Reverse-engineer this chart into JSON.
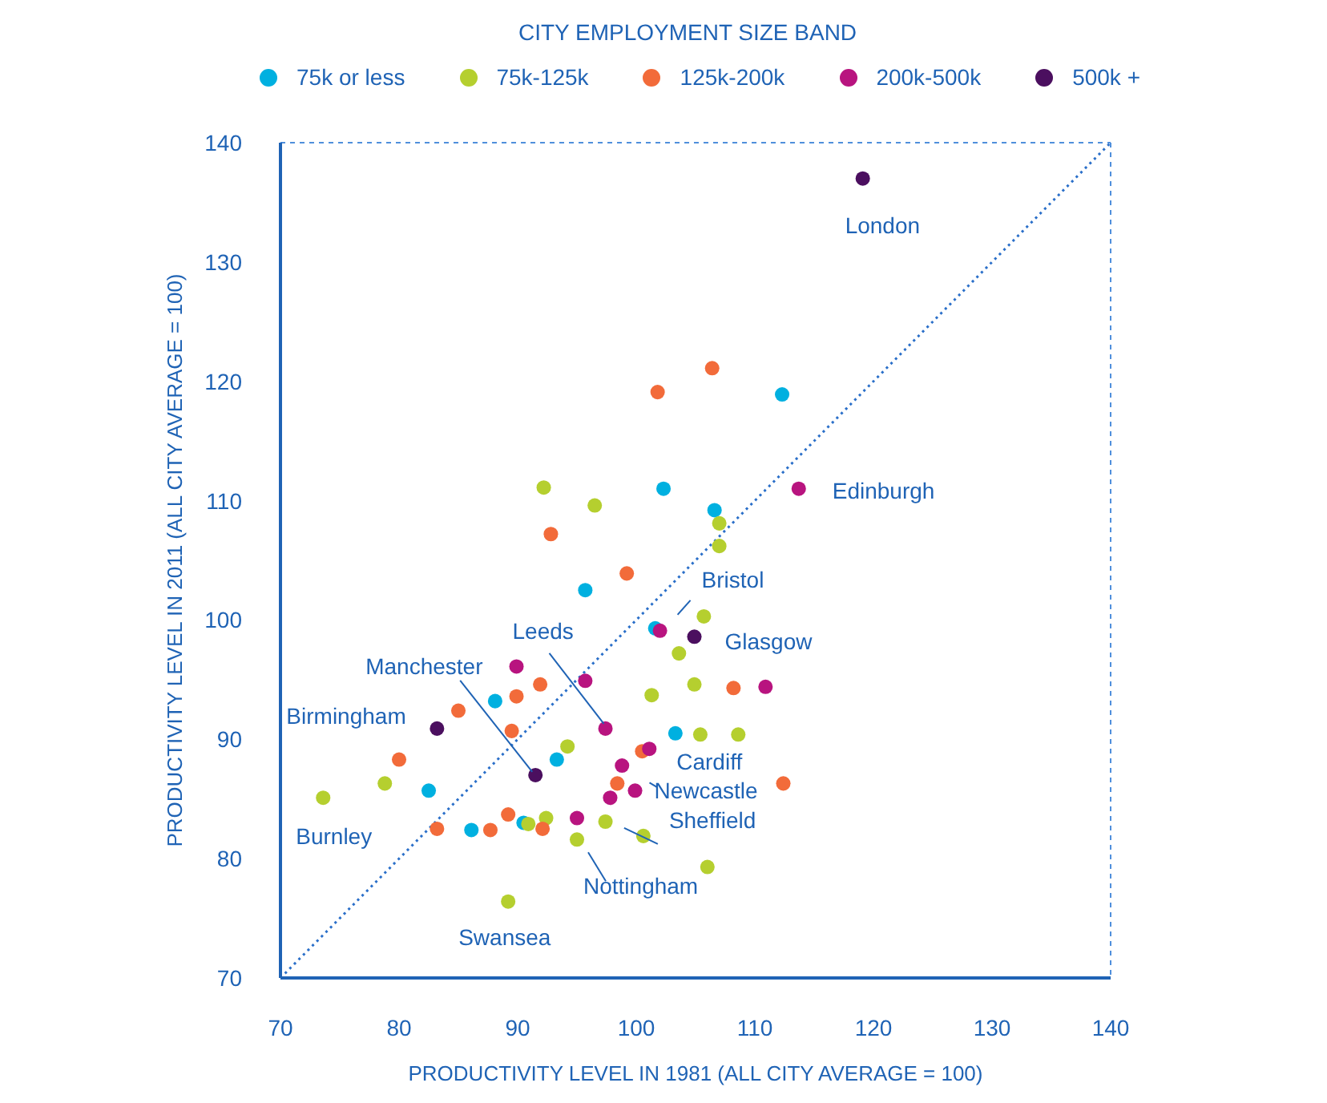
{
  "chart_data": {
    "type": "scatter",
    "xlabel": "PRODUCTIVITY LEVEL IN 1981 (ALL CITY AVERAGE = 100)",
    "ylabel": "PRODUCTIVITY LEVEL IN 2011 (ALL CITY AVERAGE = 100)",
    "legend_title": "CITY EMPLOYMENT SIZE BAND",
    "legend": "top",
    "grid": false,
    "marker": "circle",
    "xlim": [
      70,
      140
    ],
    "xticks": [
      70,
      80,
      90,
      100,
      110,
      120,
      130,
      140
    ],
    "ylim": [
      70,
      140
    ],
    "yticks": [
      70,
      80,
      90,
      100,
      110,
      120,
      130,
      140
    ],
    "series": [
      {
        "name": "75k or less",
        "color": "#00b0e0",
        "x": [
          112.3,
          102.3,
          106.6,
          95.7,
          101.6,
          88.1,
          103.3,
          93.3,
          82.5,
          90.5,
          86.1
        ],
        "values": [
          118.9,
          111.0,
          109.2,
          102.5,
          99.3,
          93.2,
          90.5,
          88.3,
          85.7,
          83.0,
          82.4
        ]
      },
      {
        "name": "75k-125k",
        "color": "#b5cf2f",
        "x": [
          92.2,
          96.5,
          107.0,
          107.0,
          105.7,
          103.6,
          101.3,
          104.9,
          105.4,
          108.6,
          94.2,
          78.8,
          73.6,
          90.9,
          92.4,
          97.4,
          95.0,
          100.6,
          106.0,
          89.2
        ],
        "values": [
          111.1,
          109.6,
          108.1,
          106.2,
          100.3,
          97.2,
          93.7,
          94.6,
          90.4,
          90.4,
          89.4,
          86.3,
          85.1,
          82.9,
          83.4,
          83.1,
          81.6,
          81.9,
          79.3,
          76.4
        ]
      },
      {
        "name": "125k-200k",
        "color": "#f26b3a",
        "x": [
          106.4,
          101.8,
          92.8,
          99.2,
          91.9,
          89.9,
          108.2,
          85.0,
          89.5,
          80.0,
          100.5,
          98.4,
          112.4,
          89.2,
          92.1,
          83.2,
          87.7
        ],
        "values": [
          121.1,
          119.1,
          107.2,
          103.9,
          94.6,
          93.6,
          94.3,
          92.4,
          90.7,
          88.3,
          89.0,
          86.3,
          86.3,
          83.7,
          82.5,
          82.5,
          82.4
        ]
      },
      {
        "name": "200k-500k",
        "color": "#b8147f",
        "x": [
          113.7,
          102.0,
          89.9,
          95.7,
          110.9,
          97.4,
          101.1,
          98.8,
          99.9,
          97.8,
          95.0
        ],
        "values": [
          111.0,
          99.1,
          96.1,
          94.9,
          94.4,
          90.9,
          89.2,
          87.8,
          85.7,
          85.1,
          83.4
        ]
      },
      {
        "name": "500k +",
        "color": "#4b0f5f",
        "x": [
          119.1,
          104.9,
          83.2,
          91.5
        ],
        "values": [
          137.0,
          98.6,
          90.9,
          87.0
        ]
      },
      {
        "type": "line",
        "color": "#2a6fc9",
        "line_style": "dotted",
        "marker": "none",
        "x": [
          70,
          140
        ],
        "values": [
          70,
          140
        ]
      }
    ],
    "annotations": [
      {
        "text": "London",
        "x": 119.1,
        "y": 137.0
      },
      {
        "text": "Edinburgh",
        "x": 113.7,
        "y": 111.0
      },
      {
        "text": "Bristol",
        "x": 102.0,
        "y": 99.1
      },
      {
        "text": "Glasgow",
        "x": 104.9,
        "y": 98.6
      },
      {
        "text": "Leeds",
        "x": 97.4,
        "y": 90.9
      },
      {
        "text": "Manchester",
        "x": 91.5,
        "y": 87.0
      },
      {
        "text": "Birmingham",
        "x": 83.2,
        "y": 90.9
      },
      {
        "text": "Cardiff",
        "x": 101.1,
        "y": 89.2
      },
      {
        "text": "Newcastle",
        "x": 99.9,
        "y": 85.7
      },
      {
        "text": "Sheffield",
        "x": 100.6,
        "y": 81.9
      },
      {
        "text": "Burnley",
        "x": 73.6,
        "y": 85.1
      },
      {
        "text": "Nottingham",
        "x": 95.0,
        "y": 81.6
      },
      {
        "text": "Swansea",
        "x": 89.2,
        "y": 76.4
      }
    ]
  }
}
